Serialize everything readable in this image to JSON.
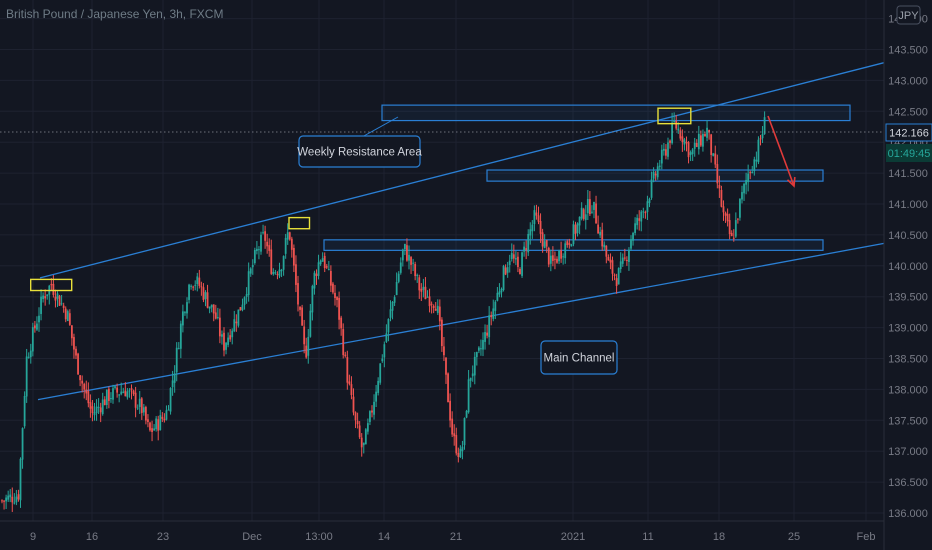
{
  "header": {
    "title": "British Pound / Japanese Yen, 3h, FXCM"
  },
  "currency_badge": "JPY",
  "price_label": "142.166",
  "countdown_label": "01:49:45",
  "colors": {
    "background": "#131722",
    "up": "#26a69a",
    "down": "#ef5350",
    "line": "#2a7fd4",
    "highlight": "#e8e03a",
    "arrow": "#e03a3a",
    "grid": "#1e2230"
  },
  "annotations": {
    "weekly_resistance": "Weekly Resistance Area",
    "main_channel": "Main Channel"
  },
  "chart_data": {
    "type": "candlestick",
    "title": "British Pound / Japanese Yen, 3h, FXCM",
    "ylim": [
      135.9,
      144.7
    ],
    "y_ticks": [
      "136.000",
      "136.500",
      "137.000",
      "137.500",
      "138.000",
      "138.500",
      "139.000",
      "139.500",
      "140.000",
      "140.500",
      "141.000",
      "141.500",
      "142.000",
      "142.500",
      "143.000",
      "143.500",
      "144.000"
    ],
    "x_ticks": [
      "9",
      "16",
      "23",
      "Dec",
      "13:00",
      "14",
      "21",
      "2021",
      "11",
      "18",
      "25",
      "Feb"
    ],
    "grid": true,
    "close_path": [
      [
        0,
        136.2
      ],
      [
        2,
        136.3
      ],
      [
        3,
        138.5
      ],
      [
        4,
        139.0
      ],
      [
        5,
        139.5
      ],
      [
        6,
        139.7
      ],
      [
        8,
        139.2
      ],
      [
        9,
        138.5
      ],
      [
        10,
        138.0
      ],
      [
        11,
        137.6
      ],
      [
        13,
        137.9
      ],
      [
        15,
        138.0
      ],
      [
        17,
        137.7
      ],
      [
        18,
        137.3
      ],
      [
        20,
        137.6
      ],
      [
        21,
        138.3
      ],
      [
        22,
        139.2
      ],
      [
        23,
        139.8
      ],
      [
        24,
        139.7
      ],
      [
        26,
        139.2
      ],
      [
        27,
        138.7
      ],
      [
        29,
        139.3
      ],
      [
        31,
        140.2
      ],
      [
        32,
        140.5
      ],
      [
        33,
        139.9
      ],
      [
        34,
        140.0
      ],
      [
        35,
        140.6
      ],
      [
        36,
        139.5
      ],
      [
        37,
        138.5
      ],
      [
        38,
        139.8
      ],
      [
        39,
        140.2
      ],
      [
        41,
        139.3
      ],
      [
        42,
        138.3
      ],
      [
        43,
        137.5
      ],
      [
        44,
        137.0
      ],
      [
        45,
        137.6
      ],
      [
        47,
        139.0
      ],
      [
        49,
        140.3
      ],
      [
        50,
        140.0
      ],
      [
        51,
        139.6
      ],
      [
        53,
        139.4
      ],
      [
        55,
        137.2
      ],
      [
        56,
        136.9
      ],
      [
        57,
        138.2
      ],
      [
        58,
        138.5
      ],
      [
        59,
        138.9
      ],
      [
        61,
        139.8
      ],
      [
        62,
        140.2
      ],
      [
        63,
        139.9
      ],
      [
        64,
        140.4
      ],
      [
        65,
        140.8
      ],
      [
        66,
        140.4
      ],
      [
        67,
        140.0
      ],
      [
        69,
        140.4
      ],
      [
        70,
        140.6
      ],
      [
        71,
        140.9
      ],
      [
        72,
        141.0
      ],
      [
        73,
        140.5
      ],
      [
        74,
        140.0
      ],
      [
        75,
        139.8
      ],
      [
        76,
        140.1
      ],
      [
        77,
        140.6
      ],
      [
        78,
        140.8
      ],
      [
        79,
        141.2
      ],
      [
        80,
        141.6
      ],
      [
        81,
        141.9
      ],
      [
        82,
        142.3
      ],
      [
        83,
        142.1
      ],
      [
        84,
        141.8
      ],
      [
        85,
        142.0
      ],
      [
        86,
        142.2
      ],
      [
        87,
        141.5
      ],
      [
        88,
        140.8
      ],
      [
        89,
        140.4
      ],
      [
        90,
        141.0
      ],
      [
        91,
        141.5
      ],
      [
        92,
        141.8
      ],
      [
        93,
        142.3
      ]
    ],
    "current_price": 142.166,
    "channel_upper": {
      "from": [
        3,
        139.75
      ],
      "to": [
        105,
        143.2
      ]
    },
    "channel_lower": {
      "from": [
        3,
        137.8
      ],
      "to": [
        105,
        140.3
      ]
    },
    "zones": [
      {
        "label": "Weekly Resistance Area",
        "from_x": 45,
        "to_x": 101,
        "low": 142.35,
        "high": 142.6
      },
      {
        "label": "",
        "from_x": 57,
        "to_x": 98,
        "low": 141.37,
        "high": 141.55
      },
      {
        "label": "",
        "from_x": 38,
        "to_x": 98,
        "low": 140.25,
        "high": 140.42
      }
    ],
    "highlights": [
      {
        "x0": 3.5,
        "x1": 8.5,
        "low": 139.6,
        "high": 139.78
      },
      {
        "x0": 35,
        "x1": 37.5,
        "low": 140.6,
        "high": 140.78
      },
      {
        "x0": 80,
        "x1": 84,
        "low": 142.3,
        "high": 142.55
      }
    ],
    "arrow": {
      "from": [
        91.5,
        142.35
      ],
      "to": [
        94,
        141.5
      ]
    }
  }
}
